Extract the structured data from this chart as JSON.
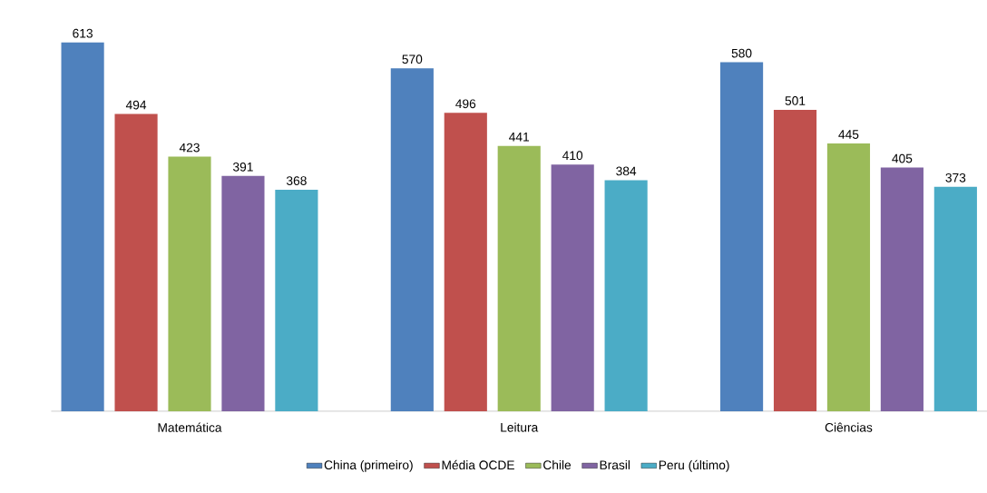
{
  "chart_data": {
    "type": "bar",
    "categories": [
      "Matemática",
      "Leitura",
      "Ciências"
    ],
    "series": [
      {
        "name": "China (primeiro)",
        "color": "#4f81bd",
        "values": [
          613,
          570,
          580
        ]
      },
      {
        "name": "Média OCDE",
        "color": "#c0504d",
        "values": [
          494,
          496,
          501
        ]
      },
      {
        "name": "Chile",
        "color": "#9bbb59",
        "values": [
          423,
          441,
          445
        ]
      },
      {
        "name": "Brasil",
        "color": "#8064a2",
        "values": [
          391,
          410,
          405
        ]
      },
      {
        "name": "Peru (último)",
        "color": "#4bacc6",
        "values": [
          368,
          384,
          373
        ]
      }
    ],
    "data_labels": true,
    "legend": "bottom",
    "grid": false
  }
}
